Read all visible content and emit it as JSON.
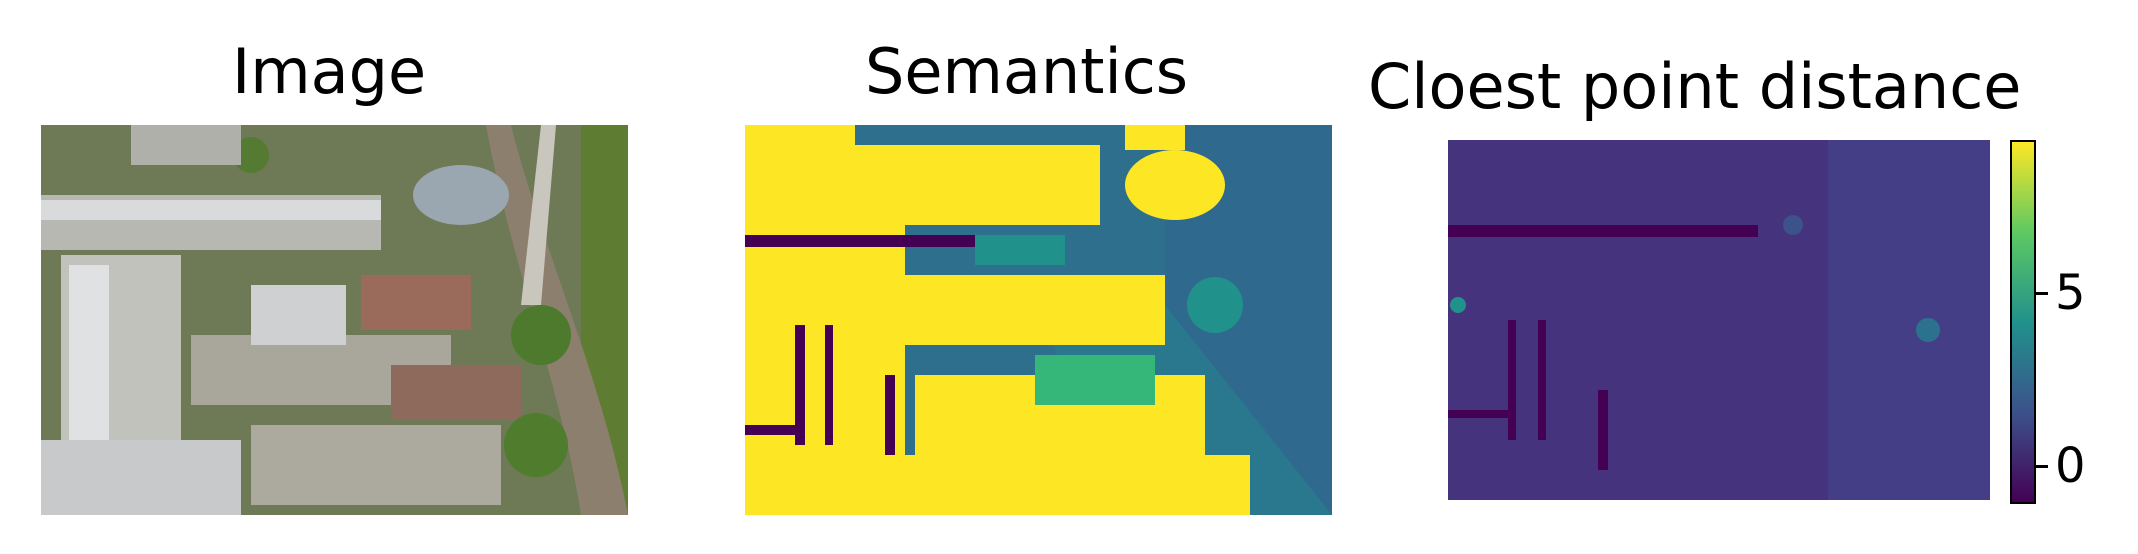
{
  "panels": {
    "image": {
      "title": "Image"
    },
    "semantics": {
      "title": "Semantics"
    },
    "distance": {
      "title": "Cloest point distance"
    }
  },
  "colorbar": {
    "colormap": "viridis",
    "ticks": [
      {
        "value": 5,
        "label": "5"
      },
      {
        "value": 0,
        "label": "0"
      }
    ],
    "range": [
      -1,
      9
    ]
  },
  "colors": {
    "viridis_dark": "#440154",
    "viridis_blue": "#3b528b",
    "viridis_teal": "#21918c",
    "viridis_green": "#5ec962",
    "viridis_yellow": "#fde725"
  },
  "chart_data": [
    {
      "type": "heatmap",
      "title": "Image"
    },
    {
      "type": "heatmap",
      "title": "Semantics"
    },
    {
      "type": "heatmap",
      "title": "Cloest point distance",
      "colorbar_ticks": [
        0,
        5
      ],
      "colorbar_range": [
        -1,
        9
      ]
    }
  ]
}
